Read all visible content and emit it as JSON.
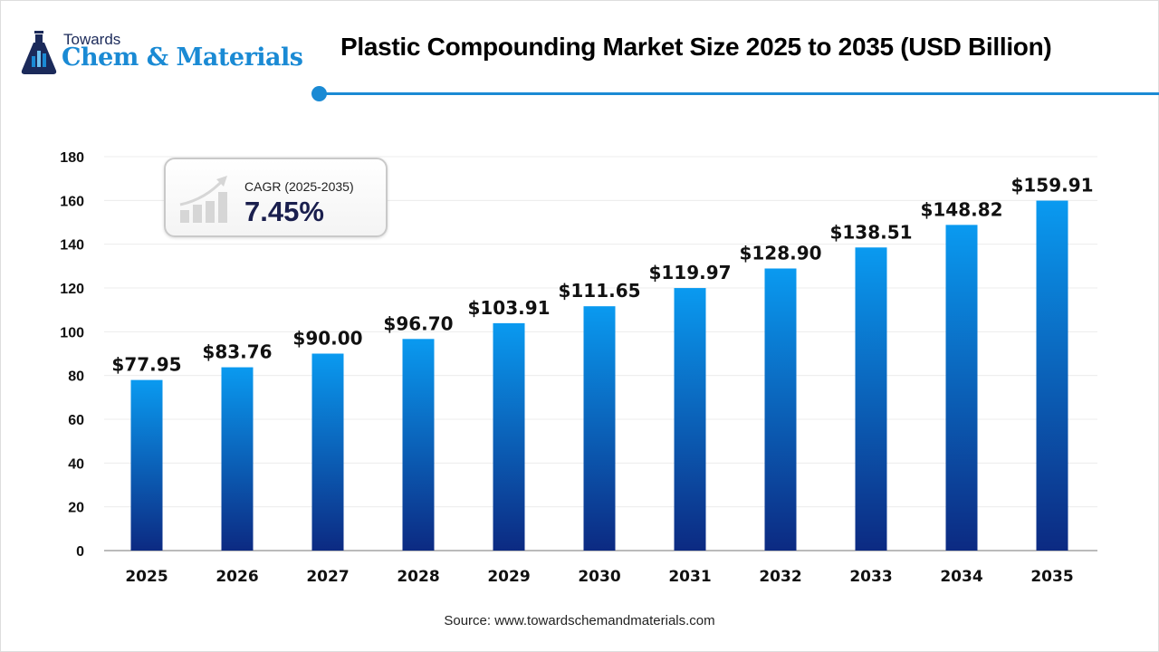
{
  "logo": {
    "line1": "Towards",
    "line2": "Chem & Materials"
  },
  "title": "Plastic Compounding Market Size 2025 to 2035 (USD Billion)",
  "cagr": {
    "label": "CAGR (2025-2035)",
    "value": "7.45%",
    "icon": "growth-chart-icon"
  },
  "source": "Source: www.towardschemandmaterials.com",
  "colors": {
    "accent": "#1a8ad4",
    "bar_top": "#0a9af0",
    "bar_bottom": "#0c2a82"
  },
  "chart_data": {
    "type": "bar",
    "title": "Plastic Compounding Market Size 2025 to 2035 (USD Billion)",
    "categories": [
      "2025",
      "2026",
      "2027",
      "2028",
      "2029",
      "2030",
      "2031",
      "2032",
      "2033",
      "2034",
      "2035"
    ],
    "values": [
      77.95,
      83.76,
      90.0,
      96.7,
      103.91,
      111.65,
      119.97,
      128.9,
      138.51,
      148.82,
      159.91
    ],
    "data_labels": [
      "$77.95",
      "$83.76",
      "$90.00",
      "$96.70",
      "$103.91",
      "$111.65",
      "$119.97",
      "$128.90",
      "$138.51",
      "$148.82",
      "$159.91"
    ],
    "yticks": [
      0,
      20,
      40,
      60,
      80,
      100,
      120,
      140,
      160,
      180
    ],
    "ylim": [
      0,
      180
    ],
    "grid": true,
    "xlabel": "",
    "ylabel": ""
  }
}
